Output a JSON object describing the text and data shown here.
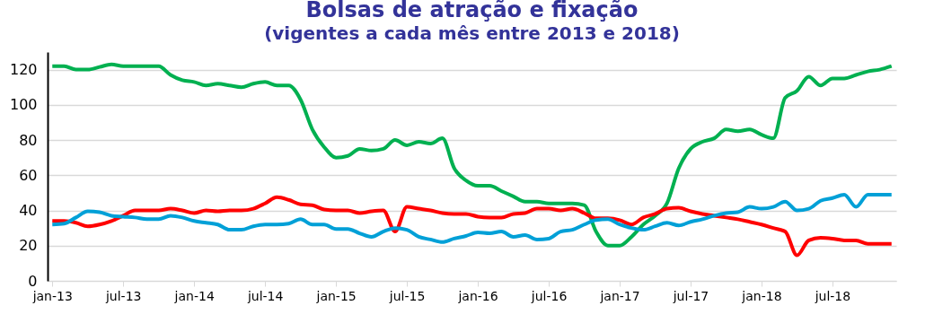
{
  "chart_data": {
    "type": "line",
    "title": "Bolsas de atração e fixação",
    "subtitle": "(vigentes a cada mês entre 2013 e 2018)",
    "categories": [
      "jan-13",
      null,
      null,
      null,
      null,
      null,
      "jul-13",
      null,
      null,
      null,
      null,
      null,
      "jan-14",
      null,
      null,
      null,
      null,
      null,
      "jul-14",
      null,
      null,
      null,
      null,
      null,
      "jan-15",
      null,
      null,
      null,
      null,
      null,
      "jul-15",
      null,
      null,
      null,
      null,
      null,
      "jan-16",
      null,
      null,
      null,
      null,
      null,
      "jul-16",
      null,
      null,
      null,
      null,
      null,
      "jan-17",
      null,
      null,
      null,
      null,
      null,
      "jul-17",
      null,
      null,
      null,
      null,
      null,
      "jan-18",
      null,
      null,
      null,
      null,
      null,
      "jul-18",
      null,
      null,
      null,
      null,
      null
    ],
    "series": [
      {
        "color": "#00b050",
        "values": [
          122,
          122,
          120,
          120,
          121.5,
          123,
          122,
          122,
          122,
          122,
          117,
          114,
          113,
          111,
          112,
          111,
          110,
          112,
          113,
          111,
          111,
          103,
          86,
          76,
          70,
          71,
          75,
          74,
          75,
          80,
          77,
          79,
          78,
          81,
          64,
          57,
          54,
          54,
          51,
          48,
          45,
          45,
          44,
          44,
          44,
          43,
          28,
          20,
          20,
          25,
          32,
          37,
          44,
          64,
          75,
          79,
          81,
          86,
          85,
          86,
          83,
          81,
          104,
          108,
          116,
          111,
          115,
          115,
          117,
          119,
          120,
          122
        ]
      },
      {
        "color": "#ff0000",
        "values": [
          34,
          34,
          33,
          31,
          32,
          34,
          37,
          40,
          40,
          40,
          41,
          40,
          38.5,
          40,
          39.5,
          40,
          40,
          41,
          44,
          47.5,
          46,
          43.5,
          43,
          40.5,
          40,
          40,
          38.5,
          39.5,
          40,
          28,
          42,
          41,
          40,
          38.5,
          38,
          38,
          36.5,
          36,
          36,
          38,
          38.5,
          41,
          41,
          40,
          41,
          38.5,
          35.5,
          35.5,
          34.5,
          32,
          36,
          38,
          41,
          41.5,
          39.5,
          38,
          37,
          36,
          35,
          33.5,
          32,
          30,
          28,
          14.5,
          23,
          24.5,
          24,
          23,
          23,
          21,
          21,
          21
        ]
      },
      {
        "color": "#00a0d7",
        "values": [
          32,
          32.5,
          36,
          39.5,
          39,
          37,
          36.5,
          36,
          35,
          35,
          37,
          36,
          34,
          33,
          32,
          29,
          29,
          31,
          32,
          32,
          32.5,
          35,
          32,
          32,
          29.5,
          29.5,
          27,
          25,
          28,
          30,
          29,
          25,
          23.5,
          22,
          24,
          25.5,
          27.5,
          27,
          28,
          25,
          26,
          23.5,
          24,
          28,
          29,
          32,
          34.5,
          35,
          32,
          30,
          29,
          31,
          33,
          31.5,
          33.5,
          35,
          37,
          38.5,
          39,
          42,
          41,
          42,
          45,
          40,
          41,
          45.5,
          47,
          49,
          42,
          49,
          49,
          49
        ]
      }
    ],
    "ylim": [
      0,
      130
    ],
    "yticks": [
      0,
      20,
      40,
      60,
      80,
      100,
      120
    ],
    "grid": "y"
  }
}
